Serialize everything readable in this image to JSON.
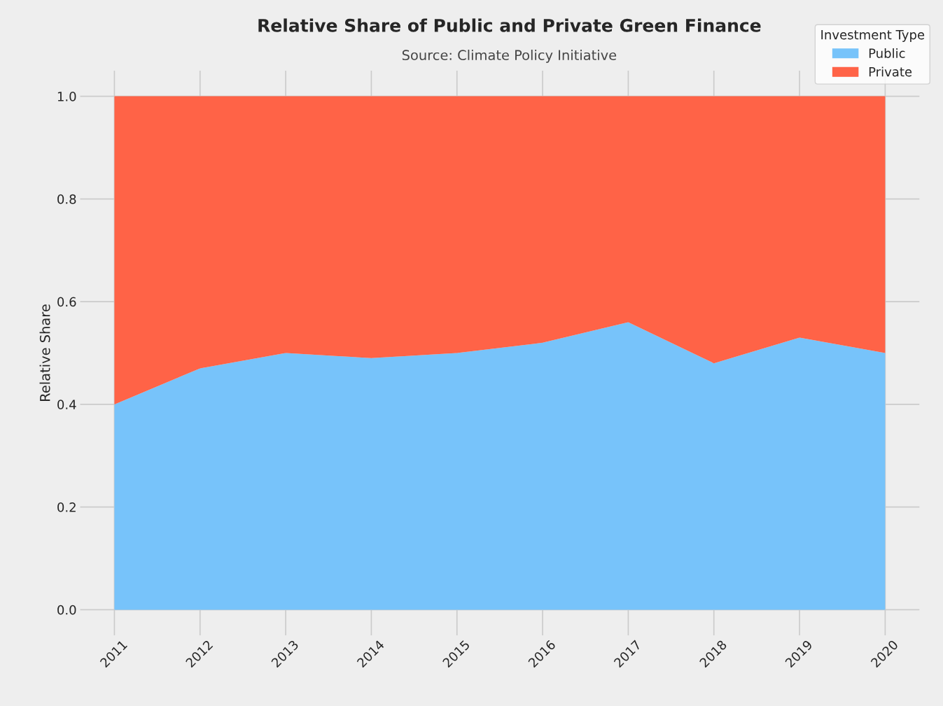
{
  "chart_data": {
    "type": "area",
    "title": "Relative Share of Public and Private Green Finance",
    "subtitle": "Source: Climate Policy Initiative",
    "ylabel": "Relative Share",
    "legend_title": "Investment Type",
    "categories": [
      "2011",
      "2012",
      "2013",
      "2014",
      "2015",
      "2016",
      "2017",
      "2018",
      "2019",
      "2020"
    ],
    "stacked": true,
    "series": [
      {
        "name": "Public",
        "color": "#77c3fa",
        "values": [
          0.4,
          0.47,
          0.5,
          0.49,
          0.5,
          0.52,
          0.56,
          0.48,
          0.53,
          0.5
        ]
      },
      {
        "name": "Private",
        "color": "#ff6347",
        "values": [
          0.6,
          0.53,
          0.5,
          0.51,
          0.5,
          0.48,
          0.44,
          0.52,
          0.47,
          0.5
        ]
      }
    ],
    "ylim": [
      -0.05,
      1.05
    ],
    "yticks": [
      {
        "value": 0,
        "label": "0.0"
      },
      0.2,
      0.4,
      0.6,
      0.8,
      {
        "value": 1,
        "label": "1.0"
      }
    ],
    "grid": true,
    "legend": "top right"
  }
}
